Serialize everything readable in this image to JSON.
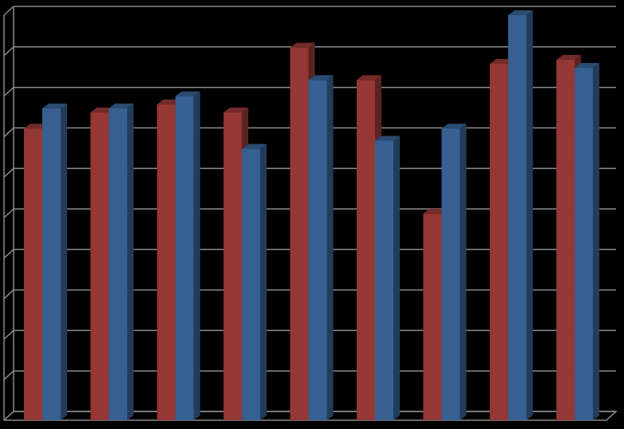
{
  "chart_data": {
    "type": "bar",
    "title": "",
    "xlabel": "",
    "ylabel": "",
    "ylim": [
      0,
      10
    ],
    "grid": true,
    "legend": "none",
    "categories": [
      "",
      "",
      "",
      "",
      "",
      "",
      "",
      "",
      ""
    ],
    "series": [
      {
        "color": "#953735",
        "values": [
          7.2,
          7.6,
          7.8,
          7.6,
          9.2,
          8.4,
          5.1,
          8.8,
          8.9
        ]
      },
      {
        "color": "#376092",
        "values": [
          7.7,
          7.7,
          8.0,
          6.7,
          8.4,
          6.9,
          7.2,
          10.0,
          8.7
        ]
      }
    ],
    "colors": {
      "background": "#000000",
      "gridline": "#8c8c8c"
    }
  }
}
